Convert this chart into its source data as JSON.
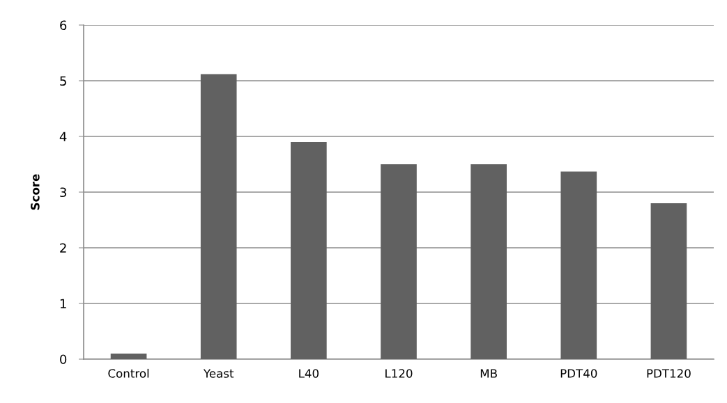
{
  "chart_data": {
    "type": "bar",
    "ylabel": "Score",
    "categories": [
      "Control",
      "Yeast",
      "L40",
      "L120",
      "MB",
      "PDT40",
      "PDT120"
    ],
    "values": [
      0.1,
      5.12,
      3.9,
      3.5,
      3.5,
      3.37,
      2.8
    ],
    "color": "#616161",
    "ylim": [
      0,
      6
    ],
    "yticks": [
      0,
      1,
      2,
      3,
      4,
      5,
      6
    ],
    "grid": "y"
  }
}
